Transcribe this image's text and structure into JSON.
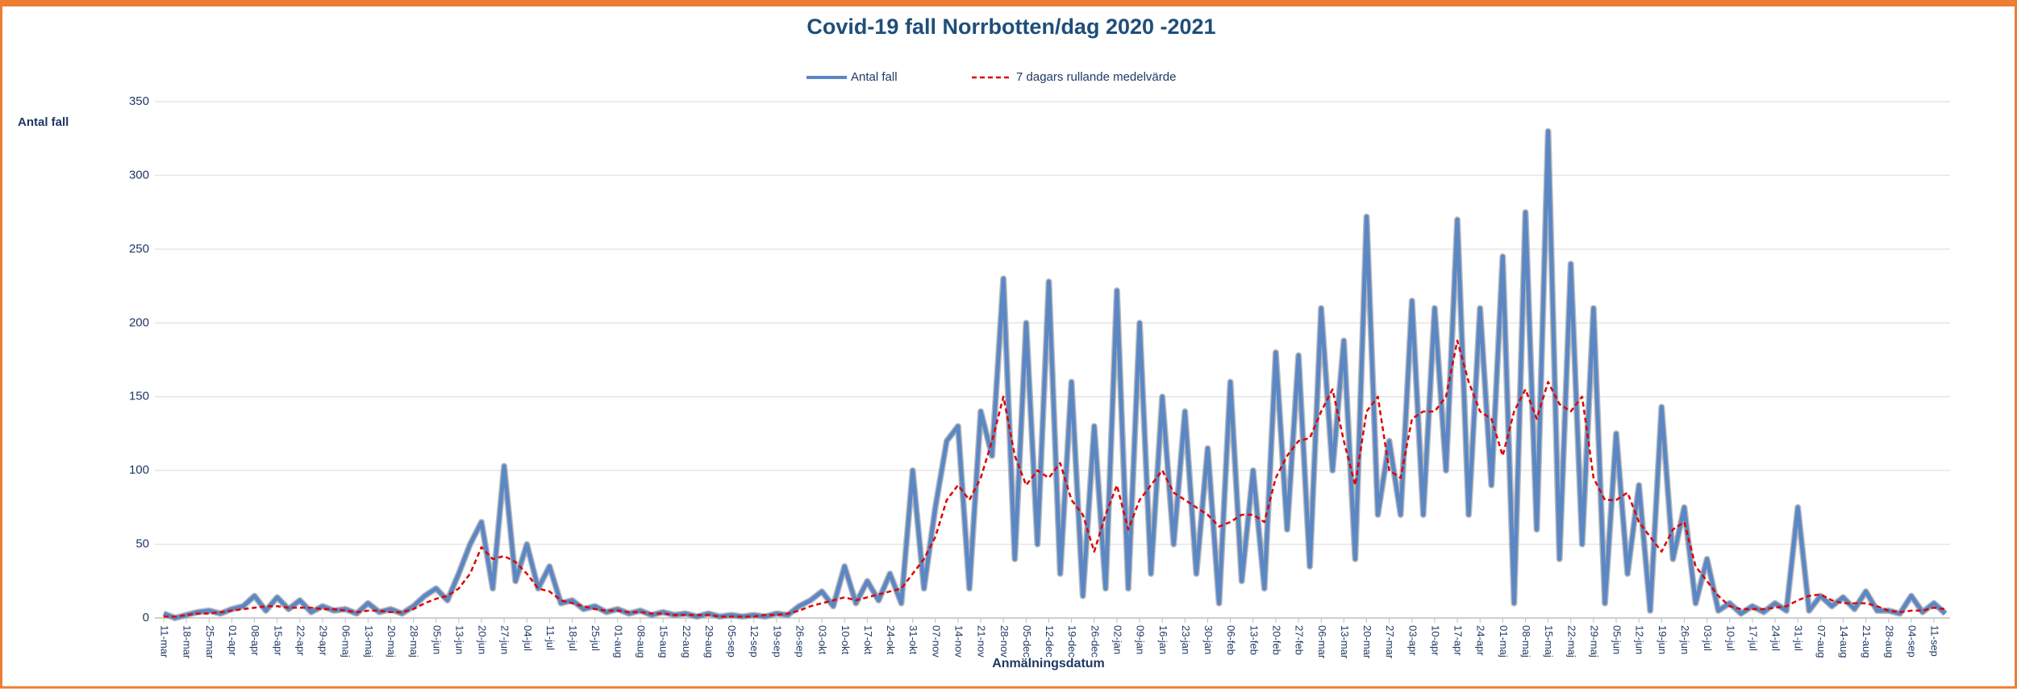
{
  "chart_data": {
    "type": "line",
    "title": "Covid-19 fall Norrbotten/dag 2020 -2021",
    "y_label": "Antal fall",
    "x_label": "Anmälningsdatum",
    "ylim": [
      0,
      350
    ],
    "yticks": [
      0,
      50,
      100,
      150,
      200,
      250,
      300,
      350
    ],
    "grid": true,
    "legend": "top",
    "categories": [
      "11-mar",
      null,
      "18-mar",
      null,
      "25-mar",
      null,
      "01-apr",
      null,
      "08-apr",
      null,
      "15-apr",
      null,
      "22-apr",
      null,
      "29-apr",
      null,
      "06-maj",
      null,
      "13-maj",
      null,
      "20-maj",
      null,
      "28-maj",
      null,
      "05-jun",
      null,
      "13-jun",
      null,
      "20-jun",
      null,
      "27-jun",
      null,
      "04-jul",
      null,
      "11-jul",
      null,
      "18-jul",
      null,
      "25-jul",
      null,
      "01-aug",
      null,
      "08-aug",
      null,
      "15-aug",
      null,
      "22-aug",
      null,
      "29-aug",
      null,
      "05-sep",
      null,
      "12-sep",
      null,
      "19-sep",
      null,
      "26-sep",
      null,
      "03-okt",
      null,
      "10-okt",
      null,
      "17-okt",
      null,
      "24-okt",
      null,
      "31-okt",
      null,
      "07-nov",
      null,
      "14-nov",
      null,
      "21-nov",
      null,
      "28-nov",
      null,
      "05-dec",
      null,
      "12-dec",
      null,
      "19-dec",
      null,
      "26-dec",
      null,
      "02-jan",
      null,
      "09-jan",
      null,
      "16-jan",
      null,
      "23-jan",
      null,
      "30-jan",
      null,
      "06-feb",
      null,
      "13-feb",
      null,
      "20-feb",
      null,
      "27-feb",
      null,
      "06-mar",
      null,
      "13-mar",
      null,
      "20-mar",
      null,
      "27-mar",
      null,
      "03-apr",
      null,
      "10-apr",
      null,
      "17-apr",
      null,
      "24-apr",
      null,
      "01-maj",
      null,
      "08-maj",
      null,
      "15-maj",
      null,
      "22-maj",
      null,
      "29-maj",
      null,
      "05-jun",
      null,
      "12-jun",
      null,
      "19-jun",
      null,
      "26-jun",
      null,
      "03-jul",
      null,
      "10-jul",
      null,
      "17-jul",
      null,
      "24-jul",
      null,
      "31-jul",
      null,
      "07-aug",
      null,
      "14-aug",
      null,
      "21-aug",
      null,
      "28-aug",
      null,
      "04-sep",
      null,
      "11-sep",
      null
    ],
    "series": [
      {
        "name": "Antal fall",
        "color": "#5b87c5",
        "dash": false,
        "values": [
          3,
          0,
          2,
          4,
          5,
          3,
          6,
          8,
          15,
          5,
          14,
          6,
          12,
          4,
          8,
          5,
          6,
          3,
          10,
          4,
          6,
          3,
          8,
          15,
          20,
          12,
          30,
          50,
          65,
          20,
          103,
          25,
          50,
          20,
          35,
          10,
          12,
          6,
          8,
          4,
          6,
          3,
          5,
          2,
          4,
          2,
          3,
          1,
          3,
          1,
          2,
          1,
          2,
          1,
          3,
          2,
          8,
          12,
          18,
          8,
          35,
          10,
          25,
          12,
          30,
          10,
          100,
          20,
          75,
          120,
          130,
          20,
          140,
          110,
          230,
          40,
          200,
          50,
          228,
          30,
          160,
          15,
          130,
          20,
          222,
          20,
          200,
          30,
          150,
          50,
          140,
          30,
          115,
          10,
          160,
          25,
          100,
          20,
          180,
          60,
          178,
          35,
          210,
          100,
          188,
          40,
          272,
          70,
          120,
          70,
          215,
          70,
          210,
          100,
          270,
          70,
          210,
          90,
          245,
          10,
          275,
          60,
          330,
          40,
          240,
          50,
          210,
          10,
          125,
          30,
          90,
          5,
          143,
          40,
          75,
          10,
          40,
          5,
          10,
          3,
          8,
          4,
          10,
          5,
          75,
          5,
          15,
          8,
          14,
          6,
          18,
          5,
          5,
          3,
          15,
          4,
          10,
          3
        ]
      },
      {
        "name": "7 dagars rullande medelvärde",
        "color": "#e00000",
        "dash": true,
        "values": [
          1,
          1,
          2,
          3,
          3,
          4,
          5,
          6,
          7,
          8,
          8,
          7,
          7,
          7,
          6,
          6,
          5,
          4,
          5,
          5,
          4,
          4,
          6,
          10,
          13,
          15,
          20,
          30,
          48,
          40,
          42,
          38,
          30,
          20,
          18,
          12,
          10,
          8,
          6,
          5,
          5,
          4,
          4,
          3,
          3,
          2,
          2,
          2,
          2,
          1,
          1,
          1,
          1,
          2,
          2,
          3,
          5,
          8,
          10,
          12,
          14,
          12,
          14,
          16,
          18,
          20,
          30,
          40,
          55,
          80,
          90,
          80,
          95,
          120,
          150,
          110,
          90,
          100,
          95,
          105,
          80,
          70,
          45,
          70,
          90,
          60,
          80,
          90,
          100,
          85,
          80,
          75,
          70,
          62,
          65,
          70,
          70,
          65,
          95,
          110,
          120,
          122,
          140,
          155,
          120,
          90,
          140,
          150,
          100,
          95,
          135,
          140,
          140,
          150,
          188,
          160,
          140,
          135,
          110,
          140,
          155,
          135,
          160,
          145,
          140,
          150,
          95,
          80,
          80,
          85,
          65,
          55,
          45,
          60,
          65,
          35,
          25,
          15,
          8,
          6,
          6,
          6,
          7,
          8,
          12,
          15,
          16,
          12,
          10,
          10,
          10,
          8,
          5,
          4,
          5,
          5,
          7,
          6
        ]
      }
    ]
  }
}
